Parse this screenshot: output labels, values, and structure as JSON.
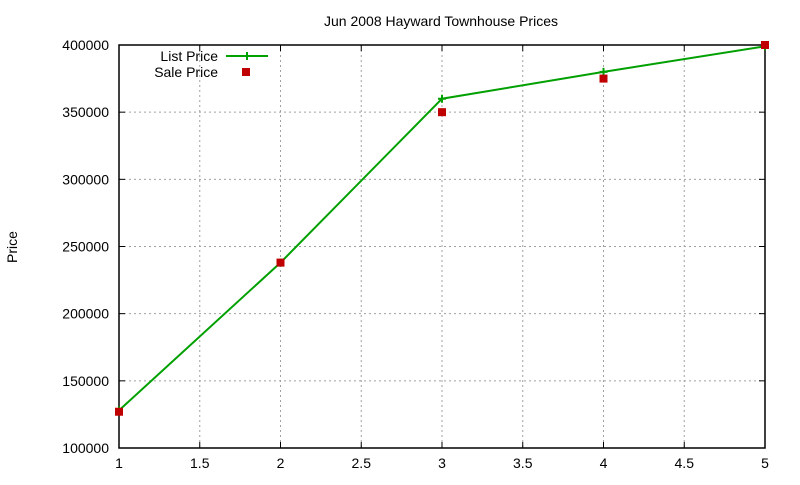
{
  "chart_data": {
    "type": "line",
    "title": "Jun 2008 Hayward Townhouse Prices",
    "xlabel": "",
    "ylabel": "Price",
    "xlim": [
      1,
      5
    ],
    "ylim": [
      100000,
      400000
    ],
    "x_ticks": [
      "1",
      "1.5",
      "2",
      "2.5",
      "3",
      "3.5",
      "4",
      "4.5",
      "5"
    ],
    "y_ticks": [
      "100000",
      "150000",
      "200000",
      "250000",
      "300000",
      "350000",
      "400000"
    ],
    "grid": true,
    "legend_position": "top-left",
    "x": [
      1,
      2,
      3,
      4,
      5
    ],
    "series": [
      {
        "name": "List Price",
        "style": "linespoints",
        "color": "#00a000",
        "values": [
          128000,
          238000,
          360000,
          380000,
          399000
        ]
      },
      {
        "name": "Sale Price",
        "style": "points",
        "color": "#c00000",
        "values": [
          127000,
          238000,
          350000,
          375000,
          400000
        ]
      }
    ]
  }
}
